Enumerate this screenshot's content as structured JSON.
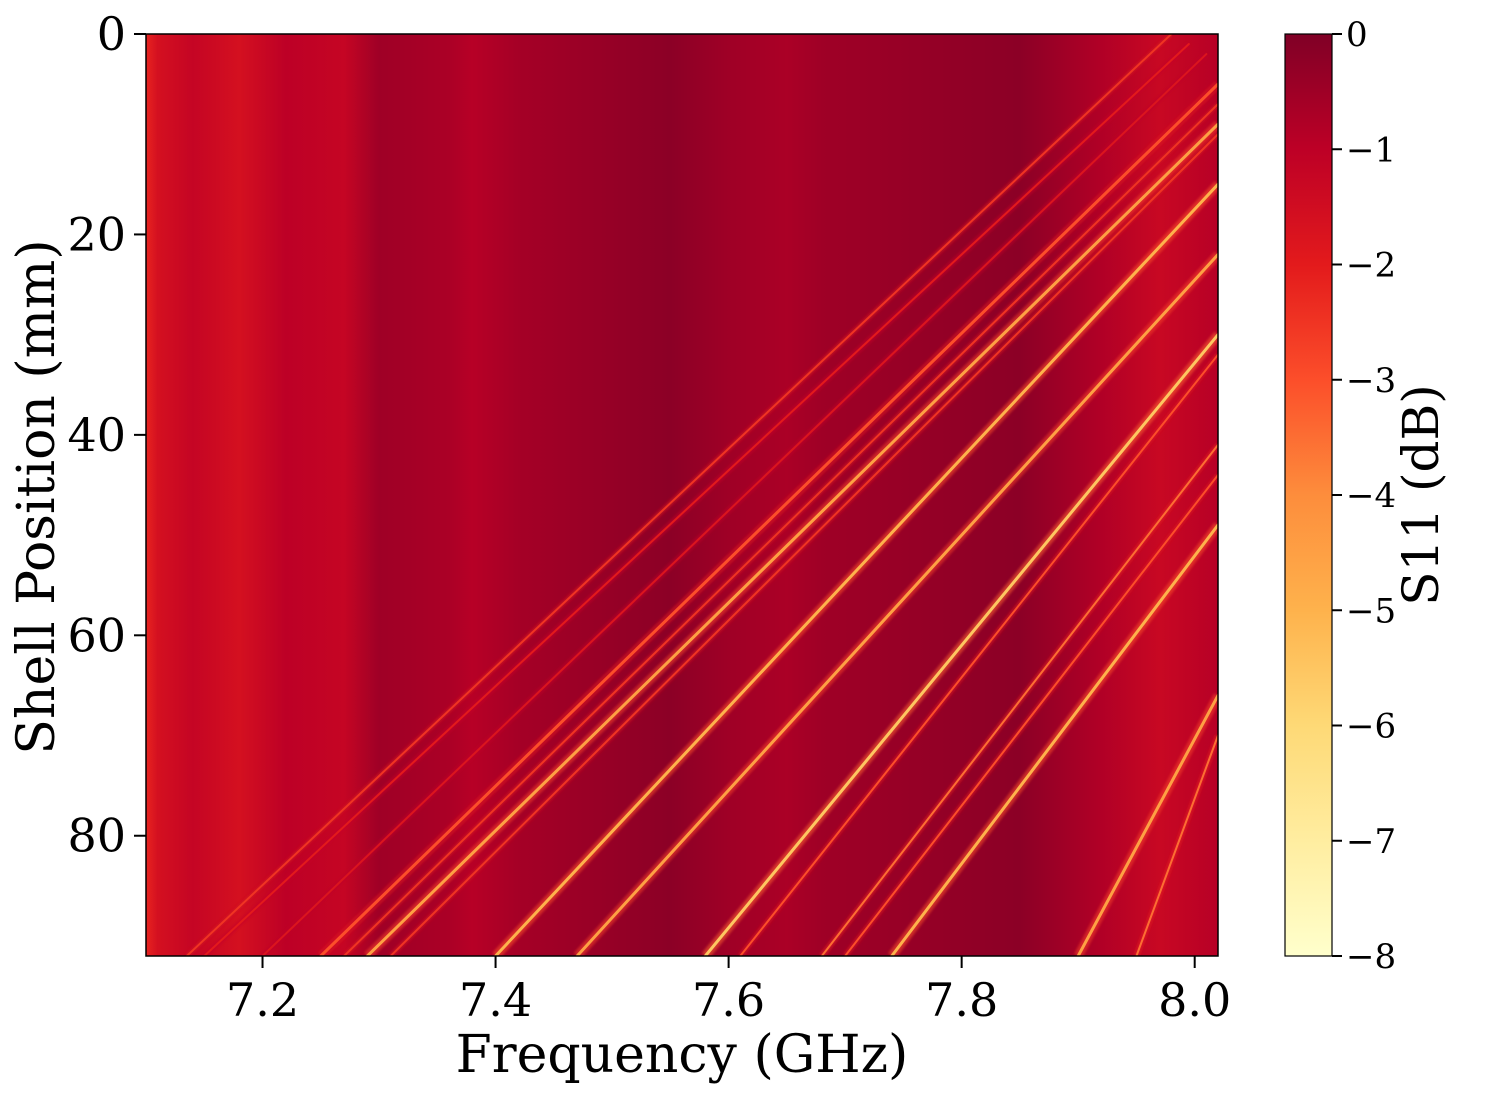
{
  "chart_data": {
    "type": "heatmap",
    "title": "",
    "xlabel": "Frequency (GHz)",
    "ylabel": "Shell Position (mm)",
    "xlim": [
      7.1,
      8.02
    ],
    "ylim": [
      0,
      92
    ],
    "y_inverted": true,
    "xticks": [
      7.2,
      7.4,
      7.6,
      7.8,
      8.0
    ],
    "xtick_labels": [
      "7.2",
      "7.4",
      "7.6",
      "7.8",
      "8.0"
    ],
    "yticks": [
      0,
      20,
      40,
      60,
      80
    ],
    "ytick_labels": [
      "0",
      "20",
      "40",
      "60",
      "80"
    ],
    "colorbar": {
      "label": "S11 (dB)",
      "range": [
        -8,
        0
      ],
      "ticks": [
        0,
        -1,
        -2,
        -3,
        -4,
        -5,
        -6,
        -7,
        -8
      ],
      "tick_labels": [
        "0",
        "−1",
        "−2",
        "−3",
        "−4",
        "−5",
        "−6",
        "−7",
        "−8"
      ],
      "colormap": "YlOrRd",
      "colors": [
        "#ffffcc",
        "#ffeda0",
        "#fed976",
        "#feb24c",
        "#fd8d3c",
        "#fc4e2a",
        "#e31a1c",
        "#bd0026",
        "#800026"
      ]
    },
    "background_bands": [
      {
        "freq": 7.1,
        "value": -2.2
      },
      {
        "freq": 7.11,
        "value": -1.6
      },
      {
        "freq": 7.14,
        "value": -1.2
      },
      {
        "freq": 7.18,
        "value": -1.6
      },
      {
        "freq": 7.22,
        "value": -1.0
      },
      {
        "freq": 7.27,
        "value": -1.2
      },
      {
        "freq": 7.3,
        "value": -0.5
      },
      {
        "freq": 7.36,
        "value": -0.7
      },
      {
        "freq": 7.38,
        "value": -0.9
      },
      {
        "freq": 7.42,
        "value": -0.6
      },
      {
        "freq": 7.55,
        "value": -0.2
      },
      {
        "freq": 7.6,
        "value": -0.5
      },
      {
        "freq": 7.65,
        "value": -0.7
      },
      {
        "freq": 7.68,
        "value": -0.5
      },
      {
        "freq": 7.85,
        "value": -0.2
      },
      {
        "freq": 7.92,
        "value": -0.8
      },
      {
        "freq": 7.97,
        "value": -1.3
      },
      {
        "freq": 8.02,
        "value": -0.9
      }
    ],
    "resonance_traces": [
      {
        "f0": 7.98,
        "p0": 0,
        "f1": 7.135,
        "p1": 92,
        "value": -2.5,
        "width": 2
      },
      {
        "f0": 7.995,
        "p0": 1,
        "f1": 7.15,
        "p1": 92,
        "value": -2.0,
        "width": 2
      },
      {
        "f0": 8.01,
        "p0": 2,
        "f1": 7.2,
        "p1": 92,
        "value": -1.8,
        "width": 2
      },
      {
        "f0": 8.02,
        "p0": 5,
        "f1": 7.25,
        "p1": 92,
        "value": -3.0,
        "width": 3
      },
      {
        "f0": 8.02,
        "p0": 7,
        "f1": 7.27,
        "p1": 92,
        "value": -2.5,
        "width": 2
      },
      {
        "f0": 8.02,
        "p0": 9,
        "f1": 7.29,
        "p1": 92,
        "value": -4.5,
        "width": 3
      },
      {
        "f0": 8.02,
        "p0": 10,
        "f1": 7.31,
        "p1": 92,
        "value": -2.5,
        "width": 2
      },
      {
        "f0": 8.02,
        "p0": 15,
        "f1": 7.4,
        "p1": 92,
        "value": -5.0,
        "width": 3
      },
      {
        "f0": 8.02,
        "p0": 22,
        "f1": 7.47,
        "p1": 92,
        "value": -4.5,
        "width": 3
      },
      {
        "f0": 8.02,
        "p0": 30,
        "f1": 7.58,
        "p1": 92,
        "value": -5.5,
        "width": 3
      },
      {
        "f0": 8.02,
        "p0": 32,
        "f1": 7.61,
        "p1": 92,
        "value": -3.0,
        "width": 2
      },
      {
        "f0": 8.02,
        "p0": 41,
        "f1": 7.68,
        "p1": 92,
        "value": -3.5,
        "width": 2
      },
      {
        "f0": 8.02,
        "p0": 44,
        "f1": 7.7,
        "p1": 92,
        "value": -3.0,
        "width": 2
      },
      {
        "f0": 8.02,
        "p0": 49,
        "f1": 7.74,
        "p1": 92,
        "value": -5.0,
        "width": 3
      },
      {
        "f0": 8.02,
        "p0": 66,
        "f1": 7.9,
        "p1": 92,
        "value": -4.5,
        "width": 3
      },
      {
        "f0": 8.02,
        "p0": 70,
        "f1": 7.95,
        "p1": 92,
        "value": -3.5,
        "width": 2
      }
    ]
  }
}
